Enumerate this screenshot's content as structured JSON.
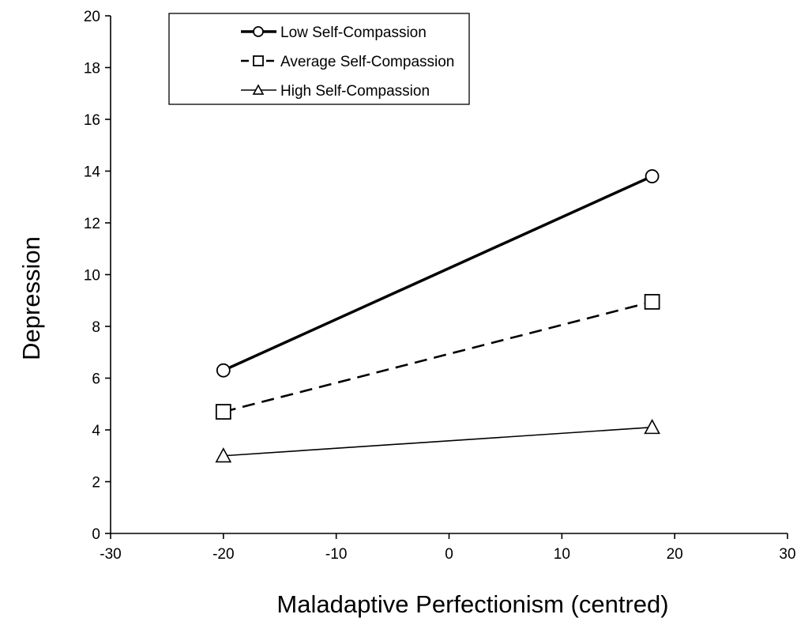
{
  "chart_data": {
    "type": "line",
    "title": "",
    "xlabel": "Maladaptive Perfectionism (centred)",
    "ylabel": "Depression",
    "xlim": [
      -30,
      30
    ],
    "ylim": [
      0,
      20
    ],
    "xticks": [
      -30,
      -20,
      -10,
      0,
      10,
      20,
      30
    ],
    "yticks": [
      0,
      2,
      4,
      6,
      8,
      10,
      12,
      14,
      16,
      18,
      20
    ],
    "grid": false,
    "legend_position": "top-left",
    "x": [
      -20,
      18
    ],
    "series": [
      {
        "name": "Low Self-Compassion",
        "values": [
          6.3,
          13.8
        ],
        "marker": "circle",
        "line_style": "solid",
        "line_weight": "thick",
        "color": "#000000"
      },
      {
        "name": "Average Self-Compassion",
        "values": [
          4.7,
          8.95
        ],
        "marker": "square",
        "line_style": "dashed",
        "line_weight": "medium",
        "color": "#000000"
      },
      {
        "name": "High Self-Compassion",
        "values": [
          3.0,
          4.1
        ],
        "marker": "triangle",
        "line_style": "solid",
        "line_weight": "thin",
        "color": "#000000"
      }
    ]
  }
}
